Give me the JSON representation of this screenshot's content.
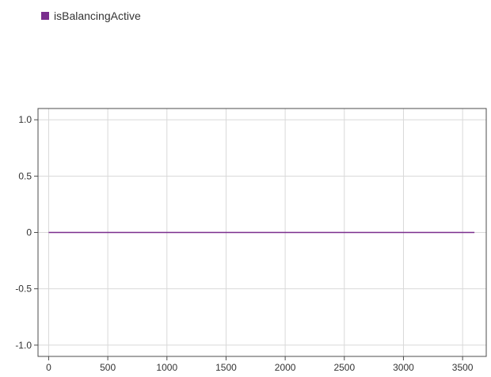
{
  "legend": {
    "items": [
      {
        "label": "isBalancingActive",
        "color": "#7a2e8e"
      }
    ]
  },
  "chart_data": {
    "type": "line",
    "title": "",
    "xlabel": "",
    "ylabel": "",
    "xlim": [
      -90,
      3700
    ],
    "ylim": [
      -1.1,
      1.1
    ],
    "xticks": [
      0,
      500,
      1000,
      1500,
      2000,
      2500,
      3000,
      3500
    ],
    "xtick_labels": [
      "0",
      "500",
      "1000",
      "1500",
      "2000",
      "2500",
      "3000",
      "3500"
    ],
    "yticks": [
      1.0,
      0.5,
      0,
      -0.5,
      -1.0
    ],
    "ytick_labels": [
      "1.0",
      "0.5",
      "0",
      "-0.5",
      "-1.0"
    ],
    "grid": true,
    "legend_position": "top-left",
    "series": [
      {
        "name": "isBalancingActive",
        "color": "#7a2e8e",
        "x": [
          0,
          3600
        ],
        "y": [
          0,
          0
        ]
      }
    ]
  }
}
